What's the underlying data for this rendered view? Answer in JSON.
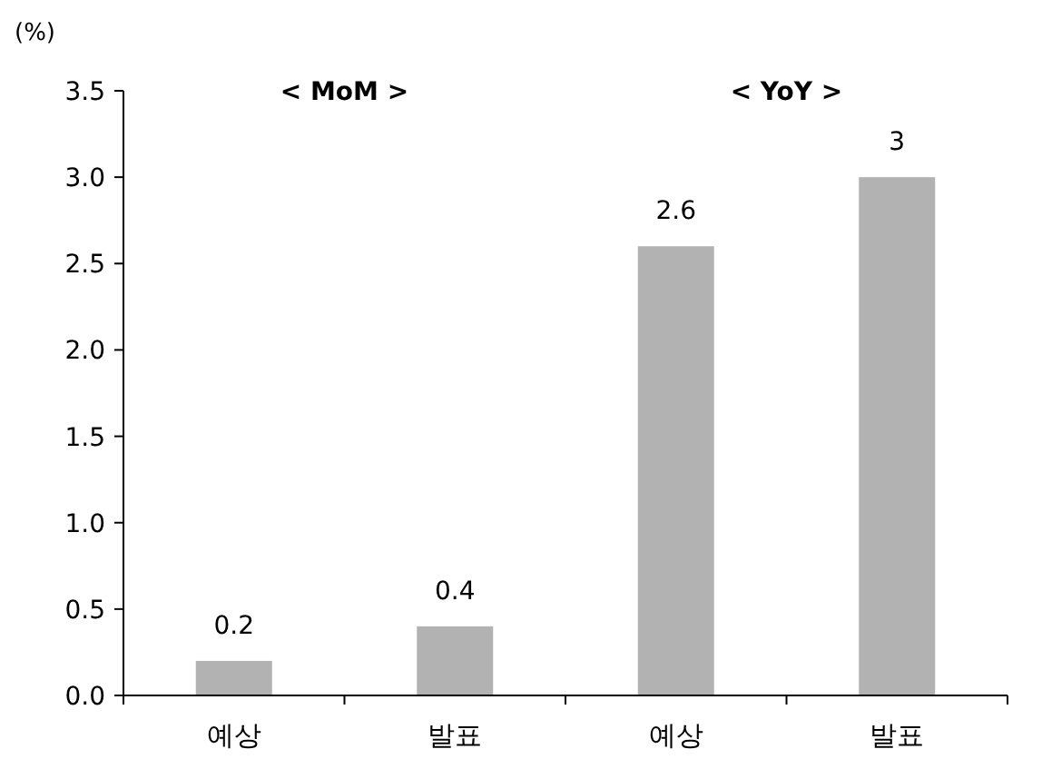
{
  "chart_data": {
    "type": "bar",
    "ylabel": "(%)",
    "categories": [
      "예상",
      "발표",
      "예상",
      "발표"
    ],
    "values": [
      0.2,
      0.4,
      2.6,
      3
    ],
    "color": "#b2b2b2",
    "ylim": [
      0,
      3.5
    ],
    "yticks": [
      {
        "value": 0,
        "label": "0.0"
      },
      {
        "value": 0.5,
        "label": "0.5"
      },
      {
        "value": 1,
        "label": "1.0"
      },
      {
        "value": 1.5,
        "label": "1.5"
      },
      {
        "value": 2,
        "label": "2.0"
      },
      {
        "value": 2.5,
        "label": "2.5"
      },
      {
        "value": 3,
        "label": "3.0"
      },
      {
        "value": 3.5,
        "label": "3.5"
      }
    ],
    "data_labels": true,
    "annotations": [
      "<  MoM  >",
      "<  YoY  >"
    ]
  }
}
